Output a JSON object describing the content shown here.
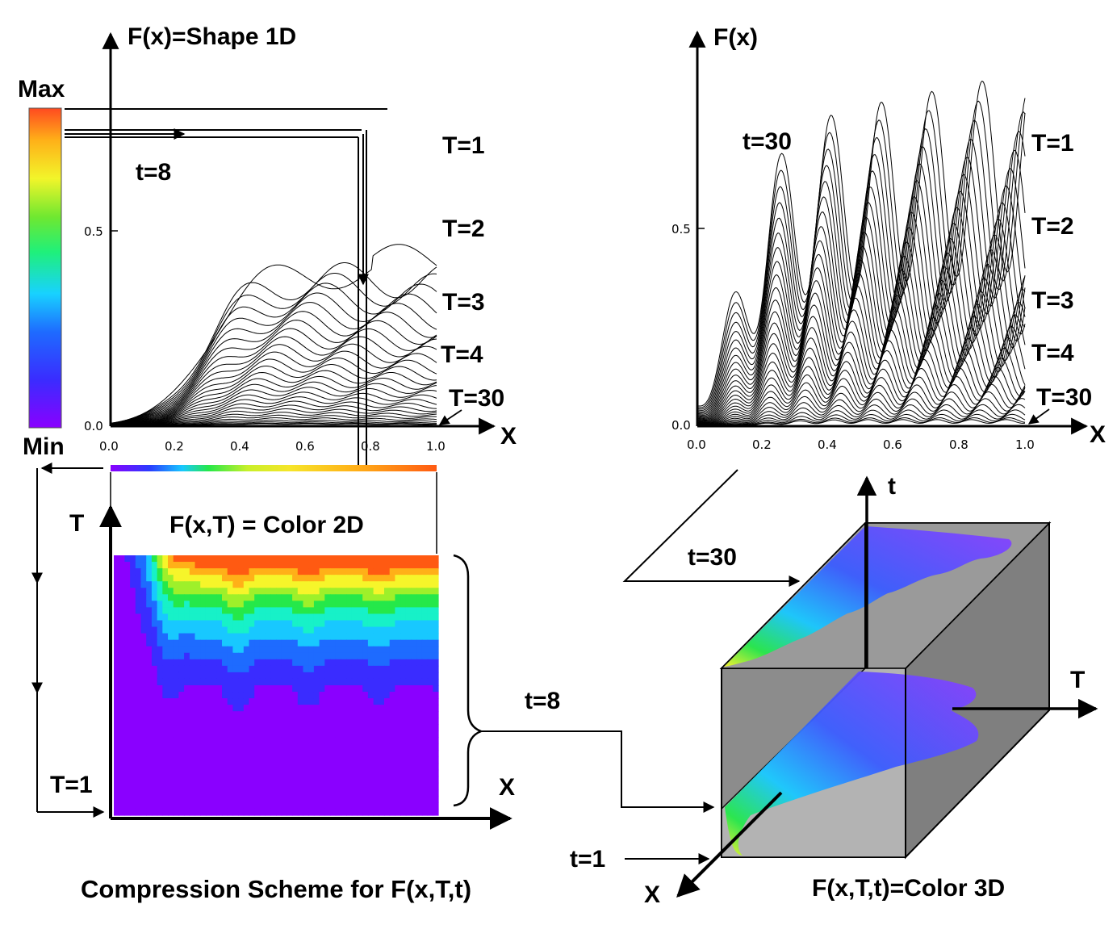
{
  "title": "Compression Scheme for F(x,T,t)",
  "colorbar": {
    "max_label": "Max",
    "min_label": "Min"
  },
  "left_plot": {
    "y_label": "F(x)=Shape  1D",
    "x_label": "X",
    "time_label": "t=8",
    "y_ticks": [
      "0.0",
      "0.5"
    ],
    "x_ticks": [
      "0.0",
      "0.2",
      "0.4",
      "0.6",
      "0.8",
      "1.0"
    ],
    "curve_labels": [
      "T=1",
      "T=2",
      "T=3",
      "T=4",
      "T=30"
    ]
  },
  "right_plot": {
    "y_label": "F(x)",
    "x_label": "X",
    "time_label": "t=30",
    "y_ticks": [
      "0.0",
      "0.5"
    ],
    "x_ticks": [
      "0.0",
      "0.2",
      "0.4",
      "0.6",
      "0.8",
      "1.0"
    ],
    "curve_labels": [
      "T=1",
      "T=2",
      "T=3",
      "T=4",
      "T=30"
    ]
  },
  "heatmap": {
    "title": "F(x,T) = Color  2D",
    "y_axis_label": "T",
    "x_axis_label": "X",
    "t1_label": "T=1"
  },
  "cube": {
    "title": "F(x,T,t)=Color 3D",
    "t_axis_label": "t",
    "T_axis_label": "T",
    "x_axis_label": "X",
    "slice_t30_label": "t=30",
    "slice_t8_label": "t=8",
    "slice_t1_label": "t=1"
  },
  "colors": {
    "rainbow": [
      "#8a00ff",
      "#3a2cff",
      "#1e6bff",
      "#18c8ff",
      "#17f1c8",
      "#25e84a",
      "#9ef02a",
      "#f6f52a",
      "#ffb018",
      "#ff5a12"
    ],
    "cube_face": "#8f8f8f",
    "cube_face_dark": "#6f6f6f"
  }
}
